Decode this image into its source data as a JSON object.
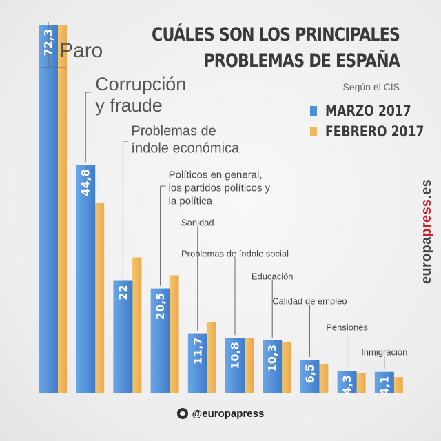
{
  "header": {
    "title_line1": "CUÁLES SON LOS PRINCIPALES",
    "title_line2": "PROBLEMAS DE ESPAÑA",
    "subtitle": "Según el CIS"
  },
  "legend": [
    {
      "label": "MARZO 2017",
      "color": "#4f8fd8"
    },
    {
      "label": "FEBRERO 2017",
      "color": "#f3b75c"
    }
  ],
  "brand": {
    "pre": "europa",
    "highlight": "press",
    "post": ".es"
  },
  "footer": {
    "twitter_handle": "@europapress",
    "icon": "twitter-icon"
  },
  "chart_data": {
    "type": "bar",
    "title": "CUÁLES SON LOS PRINCIPALES PROBLEMAS DE ESPAÑA",
    "subtitle": "Según el CIS",
    "categories": [
      [
        "Paro"
      ],
      [
        "Corrupción",
        "y fraude"
      ],
      [
        "Problemas de",
        "índole económica"
      ],
      [
        "Políticos en general,",
        "los partidos políticos y",
        "la política"
      ],
      [
        "Sanidad"
      ],
      [
        "Problemas de índole social"
      ],
      [
        "Educación"
      ],
      [
        "Calidad de empleo"
      ],
      [
        "Pensiones"
      ],
      [
        "Inmigración"
      ]
    ],
    "series": [
      {
        "name": "MARZO 2017",
        "color": "#4f8fd8",
        "values": [
          72.3,
          44.8,
          22,
          20.5,
          11.7,
          10.8,
          10.3,
          6.5,
          4.3,
          4.1
        ],
        "value_labels": [
          "72,3",
          "44,8",
          "22",
          "20,5",
          "11,7",
          "10,8",
          "10,3",
          "6,5",
          "4,3",
          "4,1"
        ]
      },
      {
        "name": "FEBRERO 2017",
        "color": "#f3b75c",
        "values": [
          72.3,
          37.3,
          26.6,
          23.1,
          13.9,
          10.8,
          9.9,
          5.7,
          3.8,
          3.1
        ]
      }
    ],
    "ylim": [
      0,
      72.3
    ],
    "grid": false,
    "legend_position": "top-right"
  }
}
